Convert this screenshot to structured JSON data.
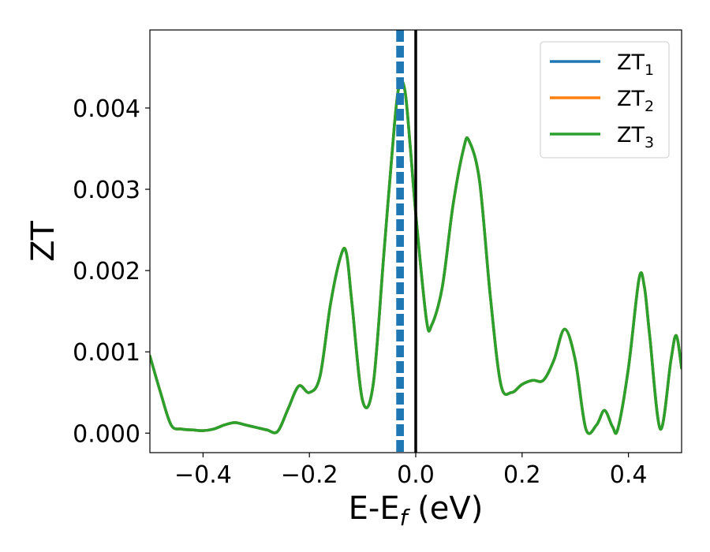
{
  "chart_data": {
    "type": "line",
    "title": "",
    "xlabel_parts": {
      "base": "E-E",
      "sub": "f",
      "rest": " (eV)"
    },
    "ylabel": "ZT",
    "xlim": [
      -0.5,
      0.5
    ],
    "ylim": [
      -0.00024,
      0.00496
    ],
    "xticks": [
      {
        "value": -0.4,
        "label": "−0.4"
      },
      {
        "value": -0.2,
        "label": "−0.2"
      },
      {
        "value": 0.0,
        "label": "0.0"
      },
      {
        "value": 0.2,
        "label": "0.2"
      },
      {
        "value": 0.4,
        "label": "0.4"
      }
    ],
    "yticks": [
      {
        "value": 0.0,
        "label": "0.000"
      },
      {
        "value": 0.001,
        "label": "0.001"
      },
      {
        "value": 0.002,
        "label": "0.002"
      },
      {
        "value": 0.003,
        "label": "0.003"
      },
      {
        "value": 0.004,
        "label": "0.004"
      }
    ],
    "grid": false,
    "legend_position": "top-right",
    "vertical_lines": [
      {
        "x": -0.033,
        "color": "#1f77b4",
        "style": "dashed"
      },
      {
        "x": -0.026,
        "color": "#1f77b4",
        "style": "dashed"
      },
      {
        "x": 0.0,
        "color": "#000000",
        "style": "solid"
      }
    ],
    "x": [
      -0.5,
      -0.48,
      -0.46,
      -0.44,
      -0.42,
      -0.4,
      -0.38,
      -0.36,
      -0.34,
      -0.32,
      -0.3,
      -0.28,
      -0.26,
      -0.24,
      -0.22,
      -0.2,
      -0.18,
      -0.16,
      -0.14,
      -0.13,
      -0.12,
      -0.1,
      -0.08,
      -0.06,
      -0.04,
      -0.03,
      -0.02,
      -0.01,
      0.0,
      0.02,
      0.03,
      0.05,
      0.07,
      0.09,
      0.1,
      0.12,
      0.14,
      0.16,
      0.18,
      0.2,
      0.22,
      0.24,
      0.26,
      0.28,
      0.3,
      0.32,
      0.34,
      0.355,
      0.37,
      0.38,
      0.4,
      0.42,
      0.43,
      0.44,
      0.46,
      0.48,
      0.49,
      0.5
    ],
    "series": [
      {
        "name": "ZT",
        "sub": "1",
        "color": "#1f77b4",
        "values": [
          0.00095,
          0.0005,
          0.0001,
          5e-05,
          4e-05,
          3e-05,
          5e-05,
          0.0001,
          0.00013,
          0.0001,
          7e-05,
          4e-05,
          2e-05,
          0.0003,
          0.00058,
          0.0005,
          0.0007,
          0.0016,
          0.0022,
          0.0022,
          0.0016,
          0.0004,
          0.0006,
          0.0022,
          0.0038,
          0.0043,
          0.0042,
          0.0035,
          0.0027,
          0.0014,
          0.00133,
          0.0018,
          0.0028,
          0.0035,
          0.0036,
          0.0031,
          0.0017,
          0.0006,
          0.0005,
          0.0006,
          0.00065,
          0.00065,
          0.0009,
          0.00128,
          0.0009,
          5e-05,
          0.0001,
          0.00028,
          8e-05,
          5e-05,
          0.0008,
          0.0019,
          0.0018,
          0.0012,
          5e-05,
          0.0009,
          0.0012,
          0.0008
        ]
      },
      {
        "name": "ZT",
        "sub": "2",
        "color": "#ff7f0e",
        "values": [
          0.00095,
          0.0005,
          0.0001,
          5e-05,
          4e-05,
          3e-05,
          5e-05,
          0.0001,
          0.00013,
          0.0001,
          7e-05,
          4e-05,
          2e-05,
          0.0003,
          0.00058,
          0.0005,
          0.0007,
          0.0016,
          0.0022,
          0.0022,
          0.0016,
          0.0004,
          0.0006,
          0.0022,
          0.0038,
          0.0043,
          0.0042,
          0.0035,
          0.0027,
          0.0014,
          0.00133,
          0.0018,
          0.0028,
          0.0035,
          0.0036,
          0.0031,
          0.0017,
          0.0006,
          0.0005,
          0.0006,
          0.00065,
          0.00065,
          0.0009,
          0.00128,
          0.0009,
          5e-05,
          0.0001,
          0.00028,
          8e-05,
          5e-05,
          0.0008,
          0.0019,
          0.0018,
          0.0012,
          5e-05,
          0.0009,
          0.0012,
          0.0008
        ]
      },
      {
        "name": "ZT",
        "sub": "3",
        "color": "#2ca02c",
        "values": [
          0.00095,
          0.0005,
          0.0001,
          5e-05,
          4e-05,
          3e-05,
          5e-05,
          0.0001,
          0.00013,
          0.0001,
          7e-05,
          4e-05,
          2e-05,
          0.0003,
          0.00058,
          0.0005,
          0.0007,
          0.0016,
          0.0022,
          0.0022,
          0.0016,
          0.0004,
          0.0006,
          0.0022,
          0.0038,
          0.0043,
          0.0042,
          0.0035,
          0.0027,
          0.0014,
          0.00133,
          0.0018,
          0.0028,
          0.0035,
          0.0036,
          0.0031,
          0.0017,
          0.0006,
          0.0005,
          0.0006,
          0.00065,
          0.00065,
          0.0009,
          0.00128,
          0.0009,
          5e-05,
          0.0001,
          0.00028,
          8e-05,
          5e-05,
          0.0008,
          0.0019,
          0.0018,
          0.0012,
          5e-05,
          0.0009,
          0.0012,
          0.0008
        ]
      }
    ]
  }
}
